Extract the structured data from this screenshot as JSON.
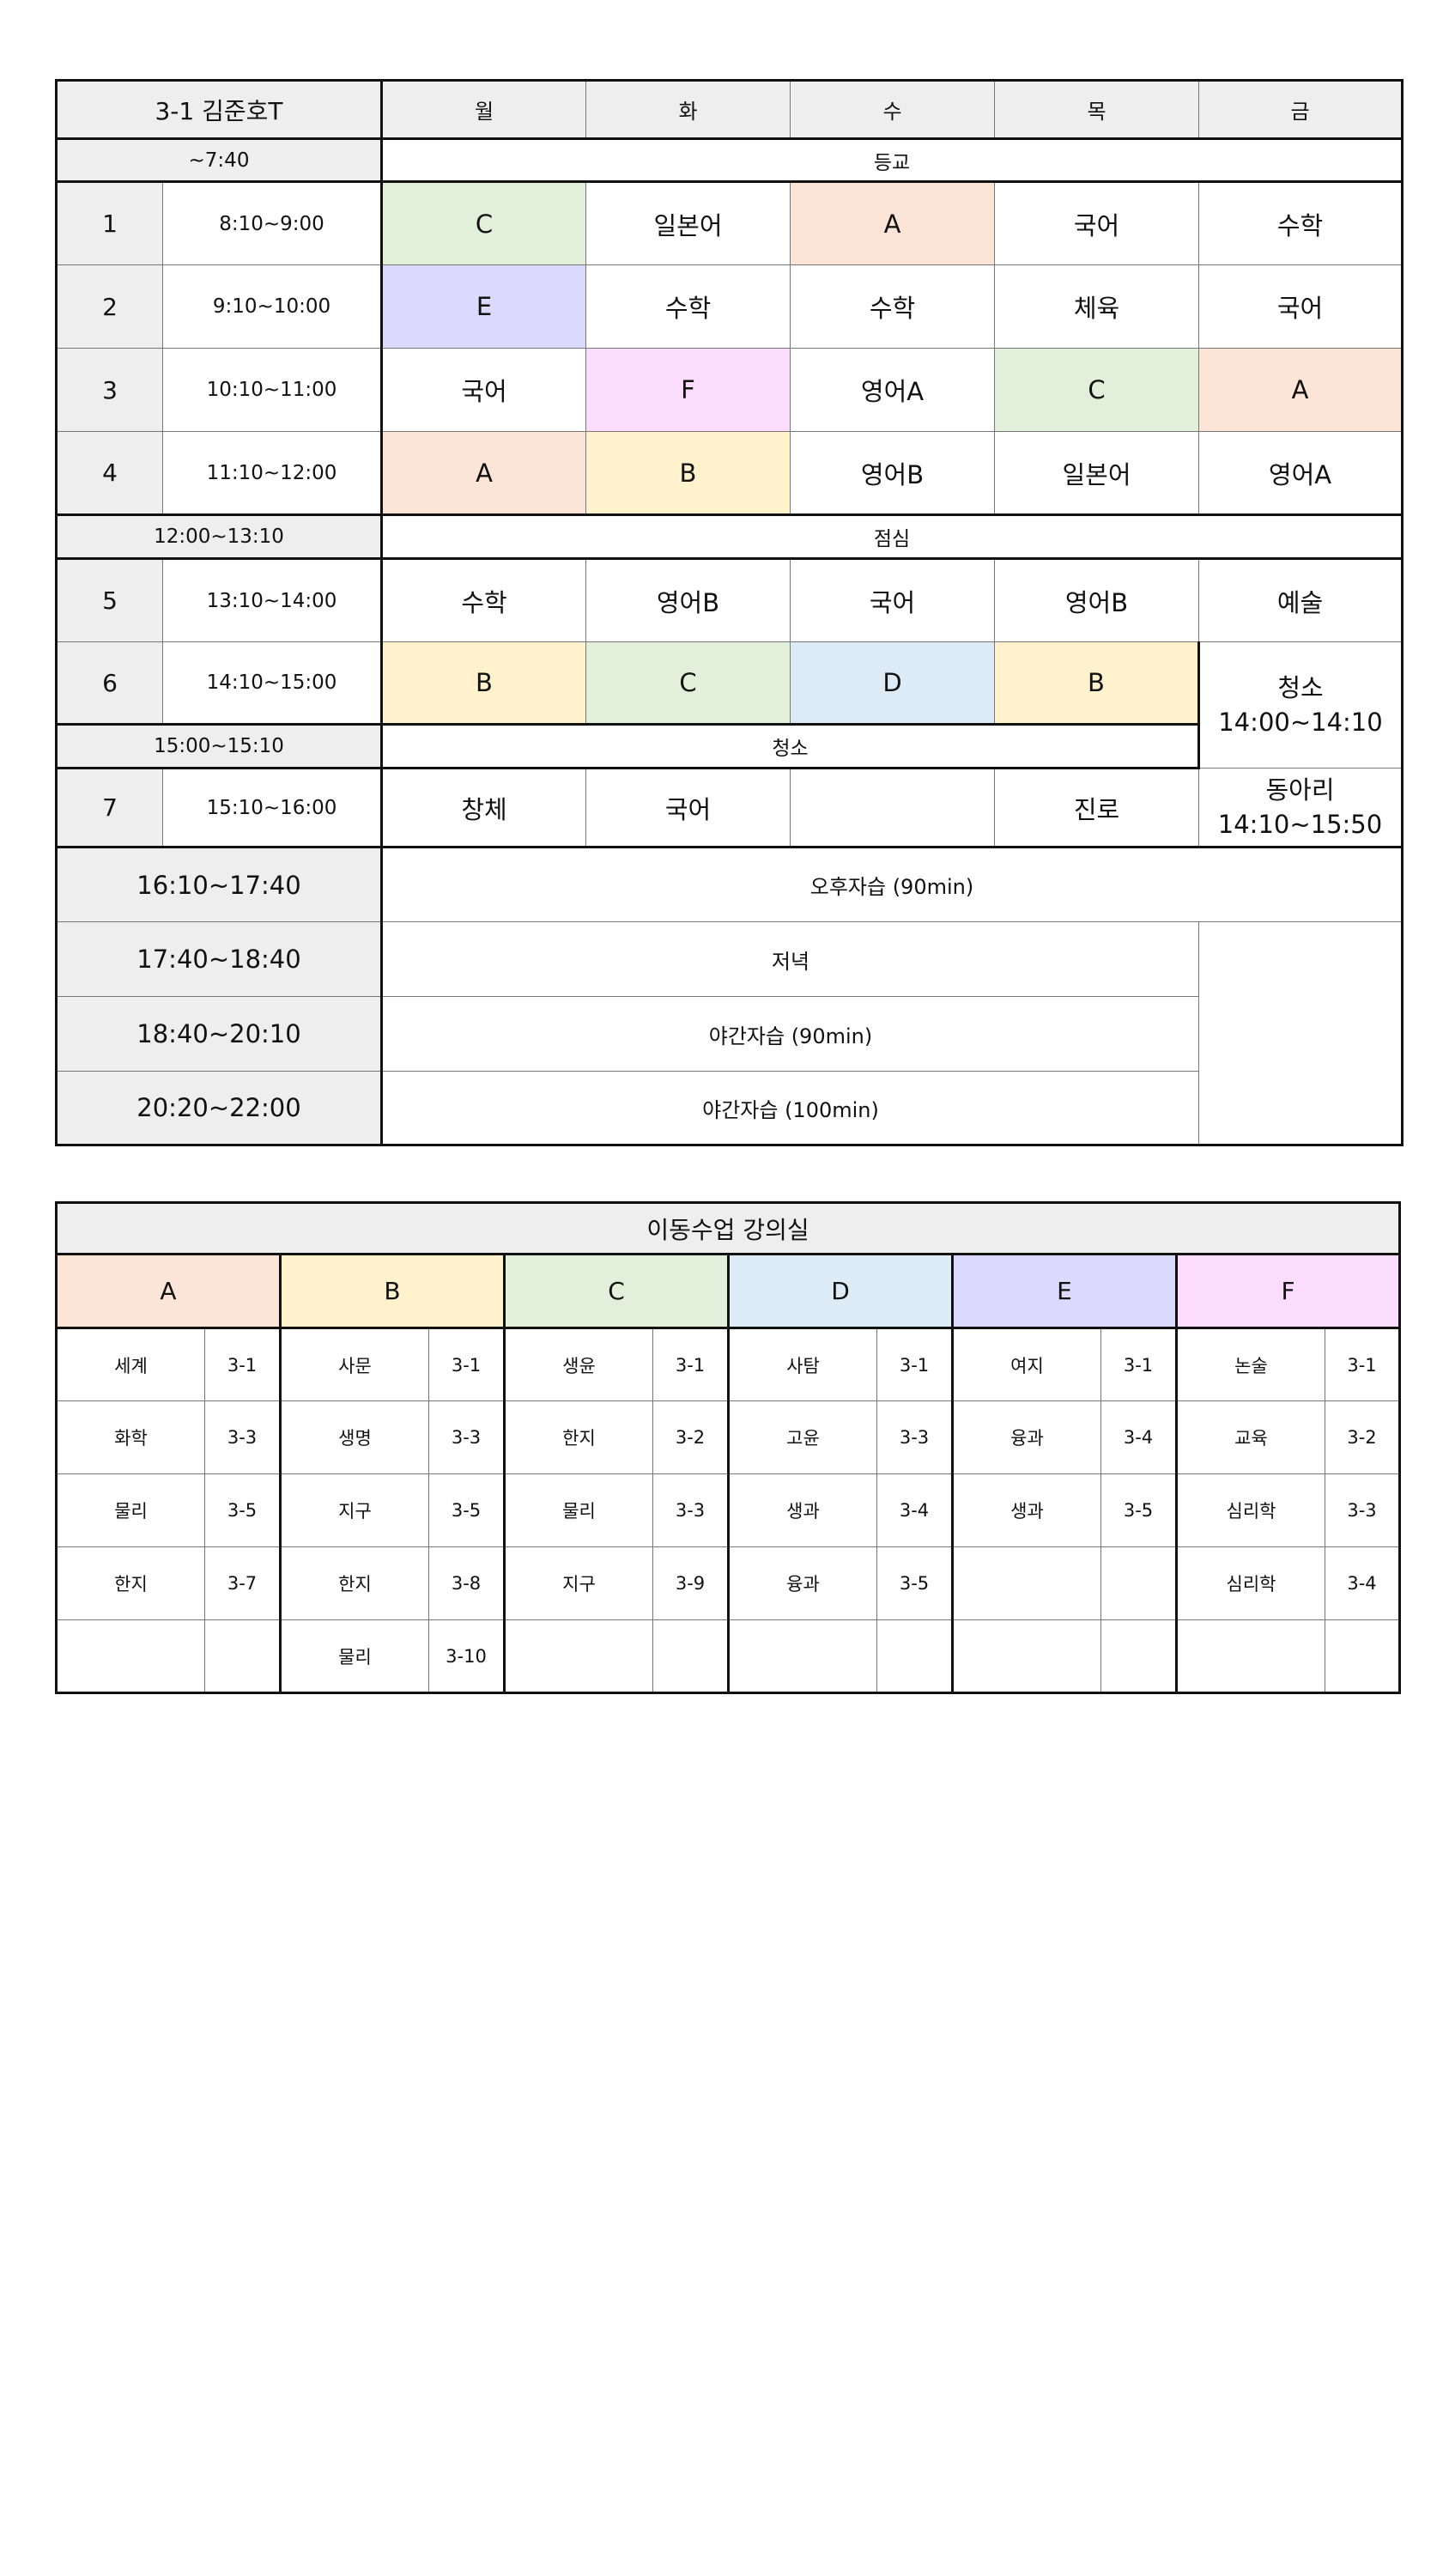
{
  "timetable": {
    "title": "3-1  김준호T",
    "days": [
      "월",
      "화",
      "수",
      "목",
      "금"
    ],
    "arrival": {
      "time": "~7:40",
      "label": "등교"
    },
    "periods_am": [
      {
        "num": "1",
        "time": "8:10~9:00",
        "subjects": [
          "C",
          "일본어",
          "A",
          "국어",
          "수학"
        ]
      },
      {
        "num": "2",
        "time": "9:10~10:00",
        "subjects": [
          "E",
          "수학",
          "수학",
          "체육",
          "국어"
        ]
      },
      {
        "num": "3",
        "time": "10:10~11:00",
        "subjects": [
          "국어",
          "F",
          "영어A",
          "C",
          "A"
        ]
      },
      {
        "num": "4",
        "time": "11:10~12:00",
        "subjects": [
          "A",
          "B",
          "영어B",
          "일본어",
          "영어A"
        ]
      }
    ],
    "lunch": {
      "time": "12:00~13:10",
      "label": "점심"
    },
    "period5": {
      "num": "5",
      "time": "13:10~14:00",
      "subjects": [
        "수학",
        "영어B",
        "국어",
        "영어B",
        "예술"
      ]
    },
    "period6": {
      "num": "6",
      "time": "14:10~15:00",
      "subjects": [
        "B",
        "C",
        "D",
        "B"
      ]
    },
    "fri_cleaning": {
      "label": "청소",
      "time": "14:00~14:10"
    },
    "cleaning": {
      "time": "15:00~15:10",
      "label": "청소"
    },
    "fri_club": {
      "label": "동아리",
      "time": "14:10~15:50"
    },
    "period7": {
      "num": "7",
      "time": "15:10~16:00",
      "subjects": [
        "창체",
        "국어",
        "",
        "진로"
      ]
    },
    "evening": [
      {
        "time": "16:10~17:40",
        "label": "오후자습 (90min)"
      },
      {
        "time": "17:40~18:40",
        "label": "저녁"
      },
      {
        "time": "18:40~20:10",
        "label": "야간자습 (90min)"
      },
      {
        "time": "20:20~22:00",
        "label": "야간자습 (100min)"
      }
    ]
  },
  "rooms": {
    "title": "이동수업 강의실",
    "groups": [
      {
        "name": "A",
        "color": "#fce4d6",
        "rows": [
          [
            "세계",
            "3-1"
          ],
          [
            "화학",
            "3-3"
          ],
          [
            "물리",
            "3-5"
          ],
          [
            "한지",
            "3-7"
          ],
          [
            "",
            ""
          ]
        ]
      },
      {
        "name": "B",
        "color": "#fff2cc",
        "rows": [
          [
            "사문",
            "3-1"
          ],
          [
            "생명",
            "3-3"
          ],
          [
            "지구",
            "3-5"
          ],
          [
            "한지",
            "3-8"
          ],
          [
            "물리",
            "3-10"
          ]
        ]
      },
      {
        "name": "C",
        "color": "#e2efda",
        "rows": [
          [
            "생윤",
            "3-1"
          ],
          [
            "한지",
            "3-2"
          ],
          [
            "물리",
            "3-3"
          ],
          [
            "지구",
            "3-9"
          ],
          [
            "",
            ""
          ]
        ]
      },
      {
        "name": "D",
        "color": "#ddebf7",
        "rows": [
          [
            "사탐",
            "3-1"
          ],
          [
            "고윤",
            "3-3"
          ],
          [
            "생과",
            "3-4"
          ],
          [
            "융과",
            "3-5"
          ],
          [
            "",
            ""
          ]
        ]
      },
      {
        "name": "E",
        "color": "#dcd9fe",
        "rows": [
          [
            "여지",
            "3-1"
          ],
          [
            "융과",
            "3-4"
          ],
          [
            "생과",
            "3-5"
          ],
          [
            "",
            ""
          ],
          [
            "",
            ""
          ]
        ]
      },
      {
        "name": "F",
        "color": "#fcdcfc",
        "rows": [
          [
            "논술",
            "3-1"
          ],
          [
            "교육",
            "3-2"
          ],
          [
            "심리학",
            "3-3"
          ],
          [
            "심리학",
            "3-4"
          ],
          [
            "",
            ""
          ]
        ]
      }
    ]
  }
}
